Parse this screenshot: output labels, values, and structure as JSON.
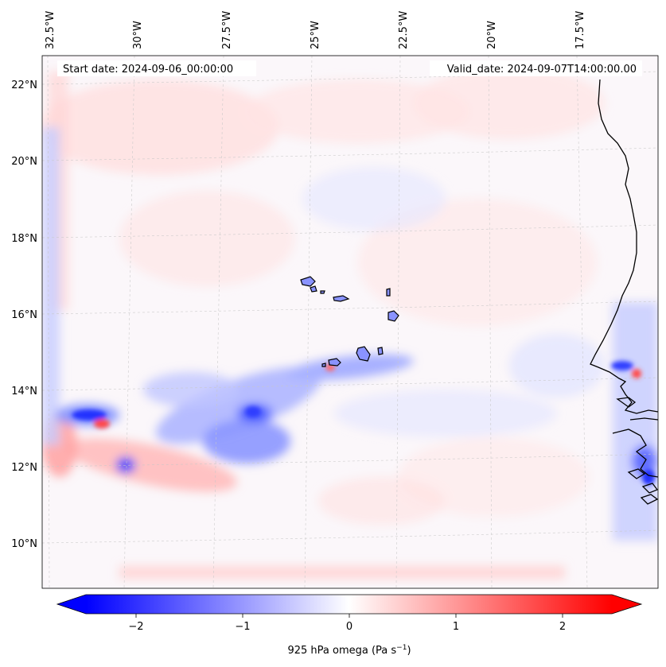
{
  "map": {
    "start_date": "Start date: 2024-09-06_00:00:00",
    "valid_date": "Valid_date: 2024-09-07T14:00:00.00",
    "lon_labels": [
      "32.5°W",
      "30°W",
      "27.5°W",
      "25°W",
      "22.5°W",
      "20°W",
      "17.5°W"
    ],
    "lat_labels": [
      "22°N",
      "20°N",
      "18°N",
      "16°N",
      "14°N",
      "12°N",
      "10°N"
    ],
    "gridlines": true,
    "features": [
      "Cape Verde islands",
      "West African coastline (Senegal, Gambia, Guinea-Bissau)"
    ]
  },
  "colorbar": {
    "label_main": "925 hPa omega (Pa s",
    "label_exp": "−1",
    "label_close": ")",
    "ticks": [
      "−2",
      "−1",
      "0",
      "1",
      "2"
    ],
    "range": [
      -2.6,
      2.6
    ],
    "colormap": "bwr",
    "colors": {
      "min": "#0000ff",
      "mid": "#ffffff",
      "max": "#ff0000"
    },
    "extend": "both"
  },
  "colors": {
    "ocean_base": "#fbf7fa",
    "coast": "#000000",
    "grid": "#c8c8c8"
  }
}
